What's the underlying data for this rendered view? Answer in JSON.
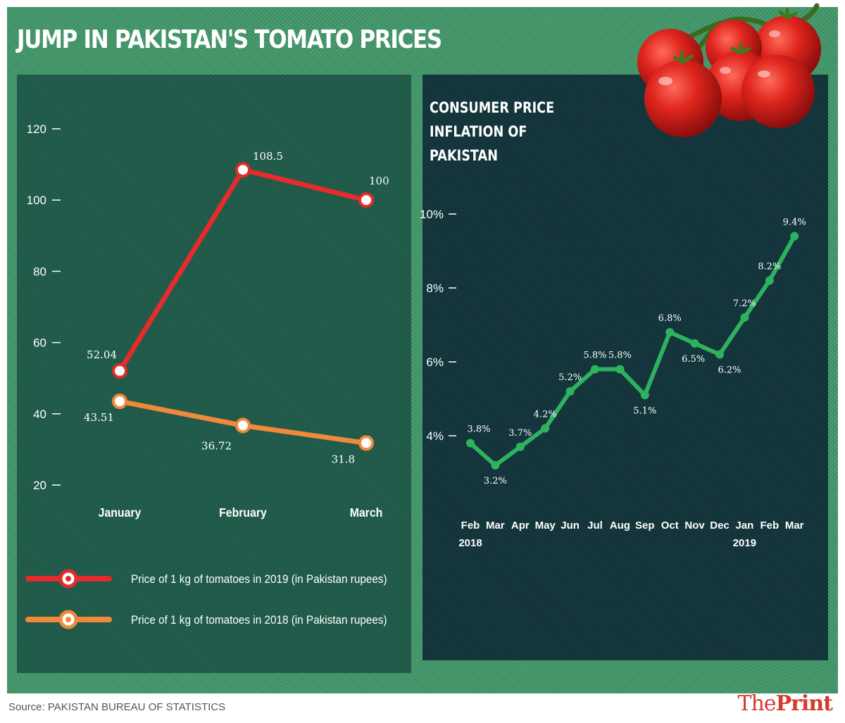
{
  "title": "JUMP IN PAKISTAN'S TOMATO PRICES",
  "source": "Source: PAKISTAN BUREAU OF STATISTICS",
  "brand": {
    "prefix": "The",
    "name": "Print"
  },
  "illustration": "tomato-cluster",
  "colors": {
    "frame": "#3f9768",
    "left_panel": "#1f5a49",
    "right_panel": "#12343a",
    "series_2019": "#e52b2b",
    "series_2018": "#f08a3a",
    "inflation_line": "#2fb25f",
    "brand": "#d63a2f"
  },
  "chart_data": [
    {
      "type": "line",
      "title": "",
      "xlabel": "",
      "ylabel": "",
      "categories": [
        "January",
        "February",
        "March"
      ],
      "yticks": [
        "120",
        "100",
        "80",
        "60",
        "40",
        "20"
      ],
      "ylim": [
        20,
        120
      ],
      "grid": false,
      "series": [
        {
          "name": "Price of 1 kg of tomatoes in 2019 (in Pakistan rupees)",
          "values": [
            52.04,
            108.5,
            100
          ],
          "labels": [
            "52.04",
            "108.5",
            "100"
          ],
          "color": "#e52b2b"
        },
        {
          "name": "Price of 1 kg of tomatoes in 2018 (in Pakistan rupees)",
          "values": [
            43.51,
            36.72,
            31.8
          ],
          "labels": [
            "43.51",
            "36.72",
            "31.8"
          ],
          "color": "#f08a3a"
        }
      ],
      "legend": "bottom-left"
    },
    {
      "type": "line",
      "title": "CONSUMER PRICE INFLATION OF PAKISTAN",
      "xlabel": "",
      "ylabel": "",
      "categories": [
        "Feb",
        "Mar",
        "Apr",
        "May",
        "Jun",
        "Jul",
        "Aug",
        "Sep",
        "Oct",
        "Nov",
        "Dec",
        "Jan",
        "Feb",
        "Mar"
      ],
      "year_labels": [
        {
          "index": 0,
          "text": "2018"
        },
        {
          "index": 11,
          "text": "2019"
        }
      ],
      "yticks": [
        "10%",
        "8%",
        "6%",
        "4%"
      ],
      "ylim": [
        4,
        10
      ],
      "grid": false,
      "series": [
        {
          "values": [
            3.8,
            3.2,
            3.7,
            4.2,
            5.2,
            5.8,
            5.8,
            5.1,
            6.8,
            6.5,
            6.2,
            7.2,
            8.2,
            9.4
          ],
          "labels": [
            "3.8%",
            "3.2%",
            "3.7%",
            "4.2%",
            "5.2%",
            "5.8%",
            "5.8%",
            "5.1%",
            "6.8%",
            "6.5%",
            "6.2%",
            "7.2%",
            "8.2%",
            "9.4%"
          ],
          "color": "#2fb25f"
        }
      ]
    }
  ]
}
